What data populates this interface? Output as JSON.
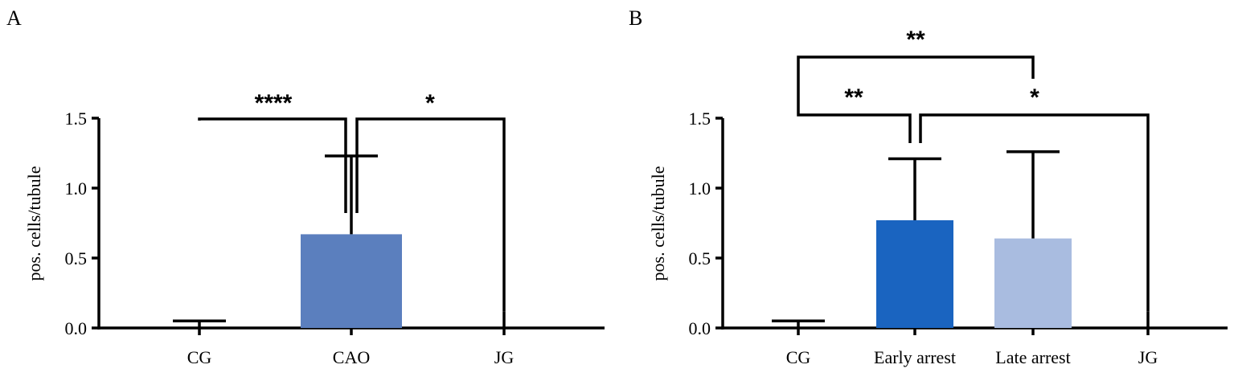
{
  "chart_data": [
    {
      "panel": "A",
      "type": "bar",
      "ylabel": "pos. cells/tubule",
      "ylim": [
        0,
        1.5
      ],
      "yticks": [
        "0.0",
        "0.5",
        "1.0",
        "1.5"
      ],
      "categories": [
        "CG",
        "CAO",
        "JG"
      ],
      "values": [
        0,
        0.67,
        0
      ],
      "error_upper": [
        0.05,
        1.23,
        0.12
      ],
      "colors": [
        "#5b7fbe",
        "#5b7fbe",
        "#5b7fbe"
      ],
      "significance": [
        {
          "from": "CAO",
          "to": "CG",
          "label": "****"
        },
        {
          "from": "CAO",
          "to": "JG",
          "label": "*"
        }
      ]
    },
    {
      "panel": "B",
      "type": "bar",
      "ylabel": "pos. cells/tubule",
      "ylim": [
        0,
        1.5
      ],
      "yticks": [
        "0.0",
        "0.5",
        "1.0",
        "1.5"
      ],
      "categories": [
        "CG",
        "Early arrest",
        "Late arrest",
        "JG"
      ],
      "values": [
        0,
        0.77,
        0.64,
        0
      ],
      "error_upper": [
        0.05,
        1.21,
        1.26,
        0.12
      ],
      "colors": [
        "#1a64c0",
        "#1a64c0",
        "#a9bce0",
        "#1a64c0"
      ],
      "significance": [
        {
          "from": "Early arrest",
          "to": "CG",
          "label": "**"
        },
        {
          "from": "Early arrest",
          "to": "JG",
          "label": "*"
        },
        {
          "from": "CG",
          "to": "Late arrest",
          "label": "**"
        }
      ]
    }
  ]
}
